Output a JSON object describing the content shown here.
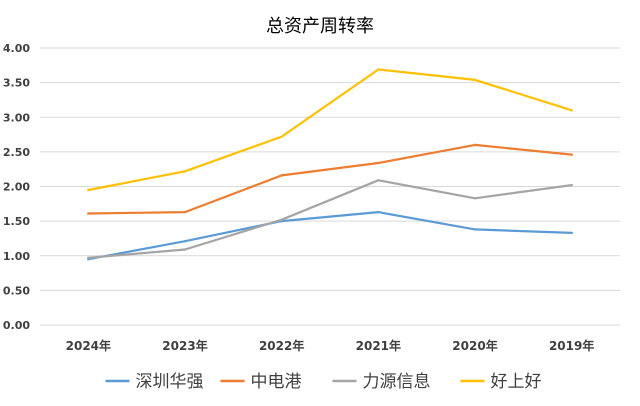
{
  "chart_data": {
    "type": "line",
    "title": "总资产周转率",
    "categories": [
      "2024年",
      "2023年",
      "2022年",
      "2021年",
      "2020年",
      "2019年"
    ],
    "ylim": [
      0,
      4
    ],
    "yticks": [
      "0.00",
      "0.50",
      "1.00",
      "1.50",
      "2.00",
      "2.50",
      "3.00",
      "3.50",
      "4.00"
    ],
    "grid": true,
    "legend_position": "bottom",
    "series": [
      {
        "name": "深圳华强",
        "color": "#5b9bd5",
        "values": [
          0.95,
          1.21,
          1.5,
          1.63,
          1.38,
          1.33
        ]
      },
      {
        "name": "中电港",
        "color": "#ed7d31",
        "values": [
          1.61,
          1.63,
          2.16,
          2.34,
          2.6,
          2.46
        ]
      },
      {
        "name": "力源信息",
        "color": "#a5a5a5",
        "values": [
          0.97,
          1.09,
          1.52,
          2.09,
          1.83,
          2.02
        ]
      },
      {
        "name": "好上好",
        "color": "#ffc000",
        "values": [
          1.95,
          2.22,
          2.72,
          3.69,
          3.54,
          3.1
        ]
      }
    ]
  }
}
